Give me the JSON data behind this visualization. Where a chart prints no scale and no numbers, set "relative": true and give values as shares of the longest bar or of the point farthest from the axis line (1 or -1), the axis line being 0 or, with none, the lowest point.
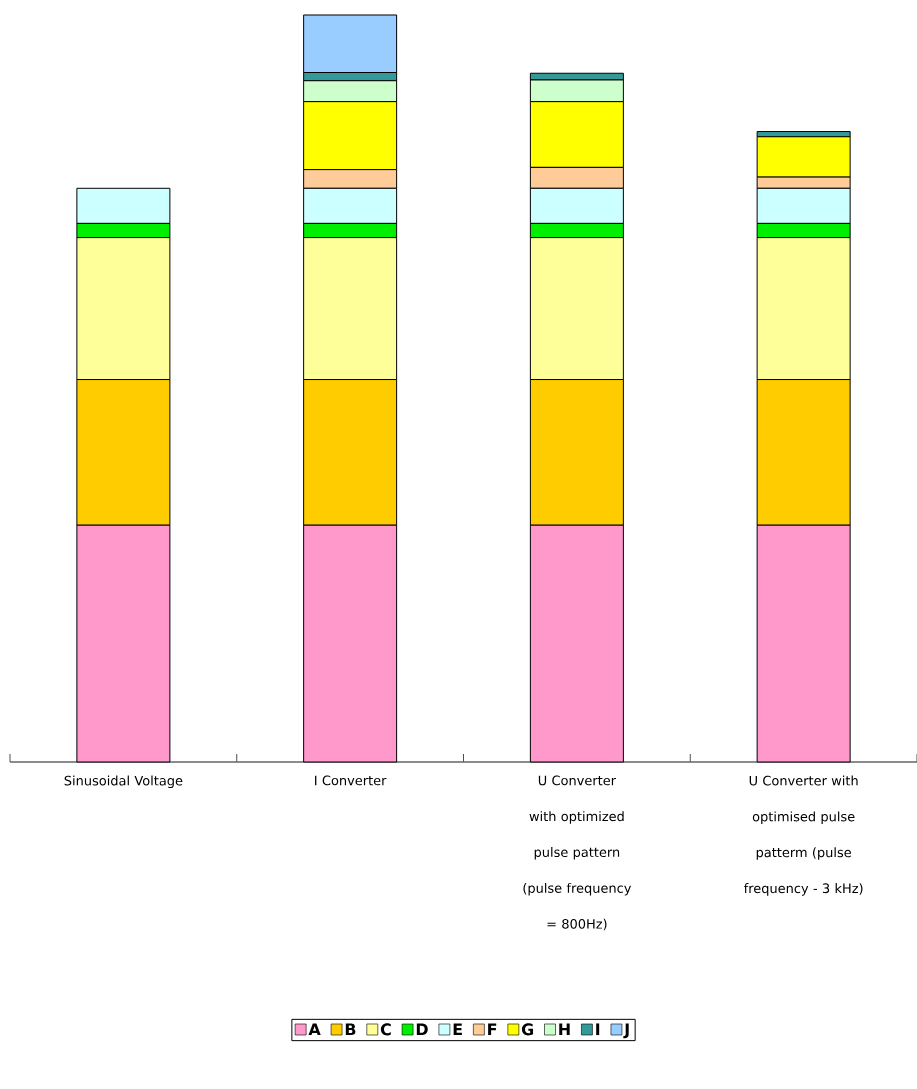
{
  "chart_data": {
    "type": "bar",
    "stacked": true,
    "relative": true,
    "legend": "bottom",
    "categories": [
      "Sinusoidal Voltage",
      "I Converter",
      "U Converter with optimized pulse pattern (pulse frequency = 800Hz)",
      "U Converter with optimised pulse patterm (pulse frequency - 3 kHz)"
    ],
    "series": [
      {
        "name": "A",
        "color": "#ff99cc",
        "values": [
          0.317,
          0.317,
          0.317,
          0.317
        ]
      },
      {
        "name": "B",
        "color": "#ffcc00",
        "values": [
          0.195,
          0.195,
          0.195,
          0.195
        ]
      },
      {
        "name": "C",
        "color": "#ffff99",
        "values": [
          0.19,
          0.19,
          0.19,
          0.19
        ]
      },
      {
        "name": "D",
        "color": "#00ee00",
        "values": [
          0.019,
          0.019,
          0.019,
          0.019
        ]
      },
      {
        "name": "E",
        "color": "#ccffff",
        "values": [
          0.047,
          0.047,
          0.047,
          0.047
        ]
      },
      {
        "name": "F",
        "color": "#ffcc99",
        "values": [
          0,
          0.025,
          0.028,
          0.015
        ]
      },
      {
        "name": "G",
        "color": "#ffff00",
        "values": [
          0,
          0.091,
          0.088,
          0.054
        ]
      },
      {
        "name": "H",
        "color": "#ccffcc",
        "values": [
          0,
          0.028,
          0.029,
          0
        ]
      },
      {
        "name": "I",
        "color": "#339999",
        "values": [
          0,
          0.011,
          0.009,
          0.007
        ]
      },
      {
        "name": "J",
        "color": "#99ccff",
        "values": [
          0,
          0.077,
          0,
          0
        ]
      }
    ]
  }
}
